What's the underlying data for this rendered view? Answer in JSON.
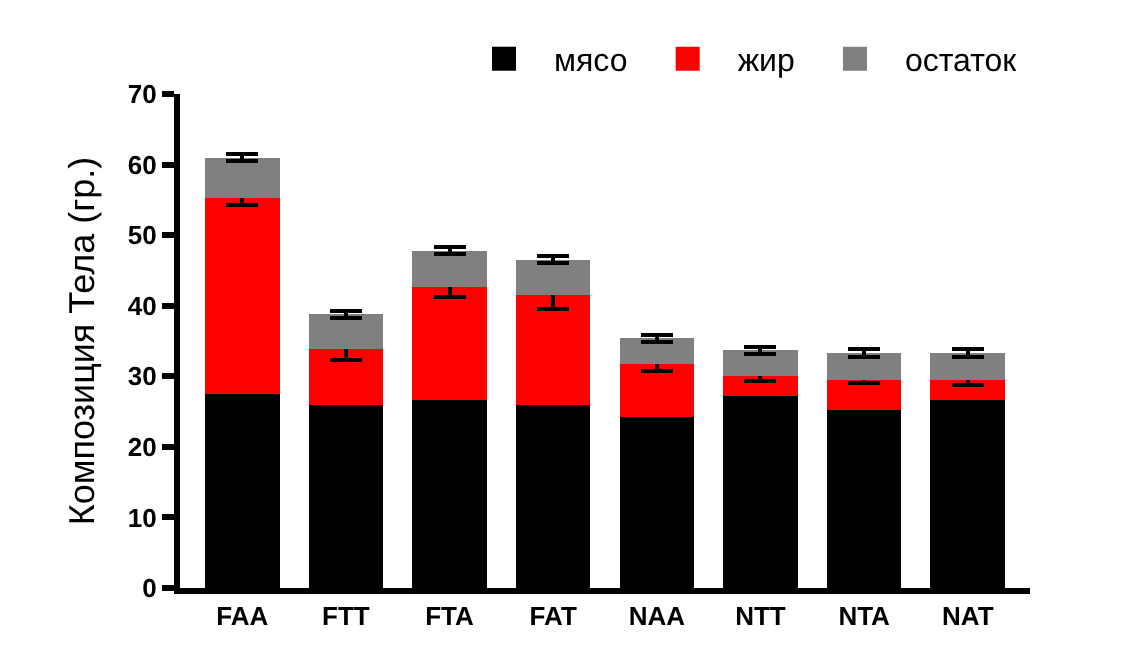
{
  "chart_data": {
    "type": "bar",
    "stacked": true,
    "ylabel": "Композиция Тела (гр.)",
    "categories": [
      "FAA",
      "FTT",
      "FTA",
      "FAT",
      "NAA",
      "NTT",
      "NTA",
      "NAT"
    ],
    "series": [
      {
        "name": "мясо",
        "color": "#000000",
        "values": [
          27.5,
          26,
          26.7,
          26,
          24.3,
          27.2,
          25.2,
          26.6
        ]
      },
      {
        "name": "жир",
        "color": "#ff0000",
        "values": [
          27.8,
          7.8,
          16,
          15.5,
          7.4,
          2.9,
          4.3,
          2.9
        ],
        "errors": [
          1,
          1.5,
          1.5,
          2,
          1,
          0.8,
          0.5,
          0.8
        ]
      },
      {
        "name": "остаток",
        "color": "#808080",
        "values": [
          5.7,
          5,
          5.1,
          5,
          3.7,
          3.6,
          3.8,
          3.8
        ],
        "errors": [
          0.5,
          0.5,
          0.5,
          0.5,
          0.5,
          0.5,
          0.5,
          0.5
        ]
      }
    ],
    "ylim": [
      0,
      70
    ],
    "yticks": [
      0,
      10,
      20,
      30,
      40,
      50,
      60,
      70
    ],
    "grid": false,
    "legend": "top right"
  }
}
